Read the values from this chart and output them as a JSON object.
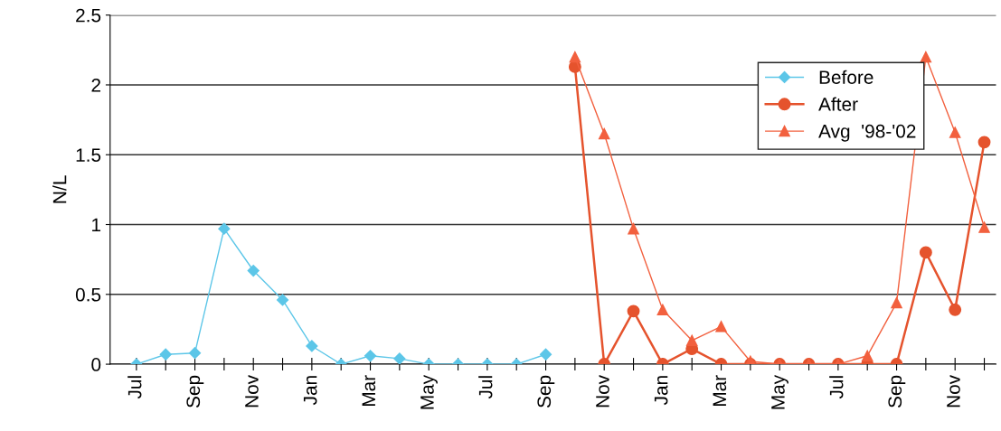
{
  "chart_data": {
    "type": "line",
    "ylabel": "N/L",
    "categories": [
      "Jul",
      null,
      "Sep",
      null,
      "Nov",
      null,
      "Jan",
      null,
      "Mar",
      null,
      "May",
      null,
      "Jul",
      null,
      "Sep",
      null,
      "Nov",
      null,
      "Jan",
      null,
      "Mar",
      null,
      "May",
      null,
      "Jul",
      null,
      "Sep",
      null,
      "Nov",
      null
    ],
    "series": [
      {
        "name": "Before",
        "color": "#5cc6e8",
        "marker": "diamond",
        "values": [
          0,
          0.07,
          0.08,
          0.97,
          0.67,
          0.46,
          0.13,
          0,
          0.06,
          0.04,
          0,
          0,
          0,
          0,
          0.07,
          null,
          null,
          null,
          null,
          null,
          null,
          null,
          null,
          null,
          null,
          null,
          null,
          null,
          null,
          null
        ]
      },
      {
        "name": "After",
        "color": "#e5532d",
        "marker": "circle",
        "values": [
          null,
          null,
          null,
          null,
          null,
          null,
          null,
          null,
          null,
          null,
          null,
          null,
          null,
          null,
          null,
          2.13,
          0,
          0.38,
          0,
          0.11,
          0,
          0,
          0,
          0,
          0,
          0,
          0,
          0.8,
          0.39,
          1.59
        ]
      },
      {
        "name": "Avg  '98-'02",
        "color": "#f2603e",
        "marker": "triangle",
        "values": [
          null,
          null,
          null,
          null,
          null,
          null,
          null,
          null,
          null,
          null,
          null,
          null,
          null,
          null,
          null,
          2.2,
          1.65,
          0.97,
          0.39,
          0.17,
          0.27,
          0.02,
          0,
          0,
          0,
          0.06,
          0.44,
          2.2,
          1.66,
          0.98
        ]
      }
    ],
    "ylim": [
      0,
      2.5
    ],
    "yticks": [
      0,
      {
        "value": 0.5,
        "label": "0.5"
      },
      1,
      {
        "value": 1.5,
        "label": "1.5"
      },
      2,
      {
        "value": 2.5,
        "label": "2.5"
      }
    ],
    "grid": "y",
    "legend": "top right"
  }
}
